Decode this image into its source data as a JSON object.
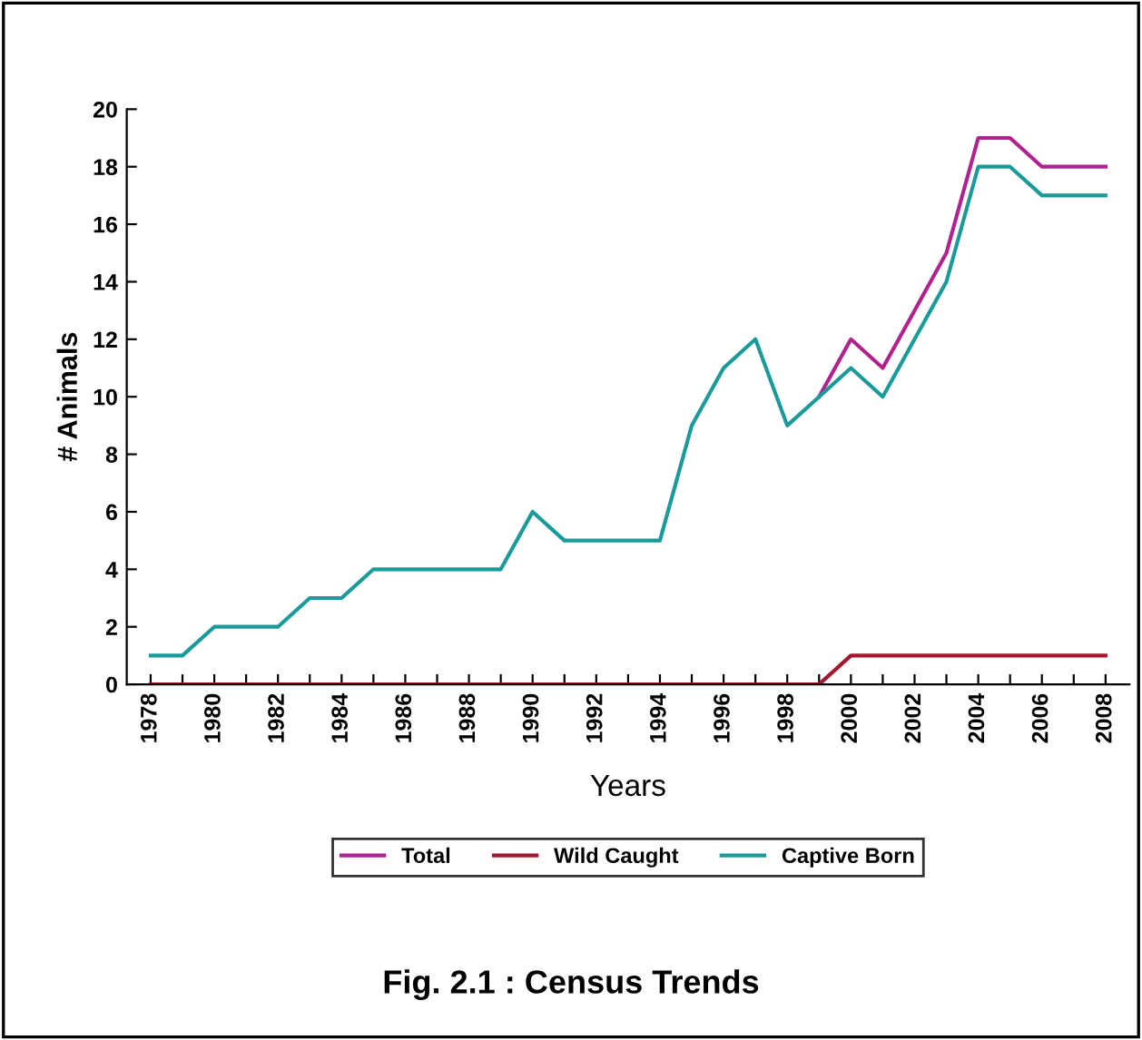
{
  "chart_data": {
    "type": "line",
    "title": "Fig. 2.1 : Census Trends",
    "xlabel": "Years",
    "ylabel": "# Animals",
    "x": [
      1978,
      1979,
      1980,
      1981,
      1982,
      1983,
      1984,
      1985,
      1986,
      1987,
      1988,
      1989,
      1990,
      1991,
      1992,
      1993,
      1994,
      1995,
      1996,
      1997,
      1998,
      1999,
      2000,
      2001,
      2002,
      2003,
      2004,
      2005,
      2006,
      2007,
      2008
    ],
    "series": [
      {
        "name": "Total",
        "color": "#b0238f",
        "values": [
          null,
          null,
          null,
          null,
          null,
          null,
          null,
          null,
          null,
          null,
          null,
          null,
          null,
          null,
          null,
          null,
          null,
          null,
          null,
          null,
          null,
          10,
          12,
          11,
          13,
          15,
          19,
          19,
          18,
          18,
          18
        ]
      },
      {
        "name": "Wild Caught",
        "color": "#a3172f",
        "values": [
          0,
          0,
          0,
          0,
          0,
          0,
          0,
          0,
          0,
          0,
          0,
          0,
          0,
          0,
          0,
          0,
          0,
          0,
          0,
          0,
          0,
          0,
          1,
          1,
          1,
          1,
          1,
          1,
          1,
          1,
          1
        ]
      },
      {
        "name": "Captive Born",
        "color": "#1a9a9a",
        "values": [
          1,
          1,
          2,
          2,
          2,
          3,
          3,
          4,
          4,
          4,
          4,
          4,
          6,
          5,
          5,
          5,
          5,
          9,
          11,
          12,
          9,
          10,
          11,
          10,
          12,
          14,
          18,
          18,
          17,
          17,
          17
        ]
      }
    ],
    "xlim": [
      1977.25,
      2008.75
    ],
    "ylim": [
      0,
      20
    ],
    "xticks": [
      1978,
      {
        "value": 1979,
        "label": null
      },
      1980,
      {
        "value": 1981,
        "label": null
      },
      1982,
      {
        "value": 1983,
        "label": null
      },
      1984,
      {
        "value": 1985,
        "label": null
      },
      1986,
      {
        "value": 1987,
        "label": null
      },
      1988,
      {
        "value": 1989,
        "label": null
      },
      1990,
      {
        "value": 1991,
        "label": null
      },
      1992,
      {
        "value": 1993,
        "label": null
      },
      1994,
      {
        "value": 1995,
        "label": null
      },
      1996,
      {
        "value": 1997,
        "label": null
      },
      1998,
      {
        "value": 1999,
        "label": null
      },
      2000,
      {
        "value": 2001,
        "label": null
      },
      2002,
      {
        "value": 2003,
        "label": null
      },
      2004,
      {
        "value": 2005,
        "label": null
      },
      2006,
      {
        "value": 2007,
        "label": null
      },
      2008
    ],
    "yticks": [
      0,
      2,
      4,
      6,
      8,
      10,
      12,
      14,
      16,
      18,
      20
    ],
    "grid": false,
    "legend": "bottom",
    "marker": "none",
    "line_style": "solid"
  }
}
